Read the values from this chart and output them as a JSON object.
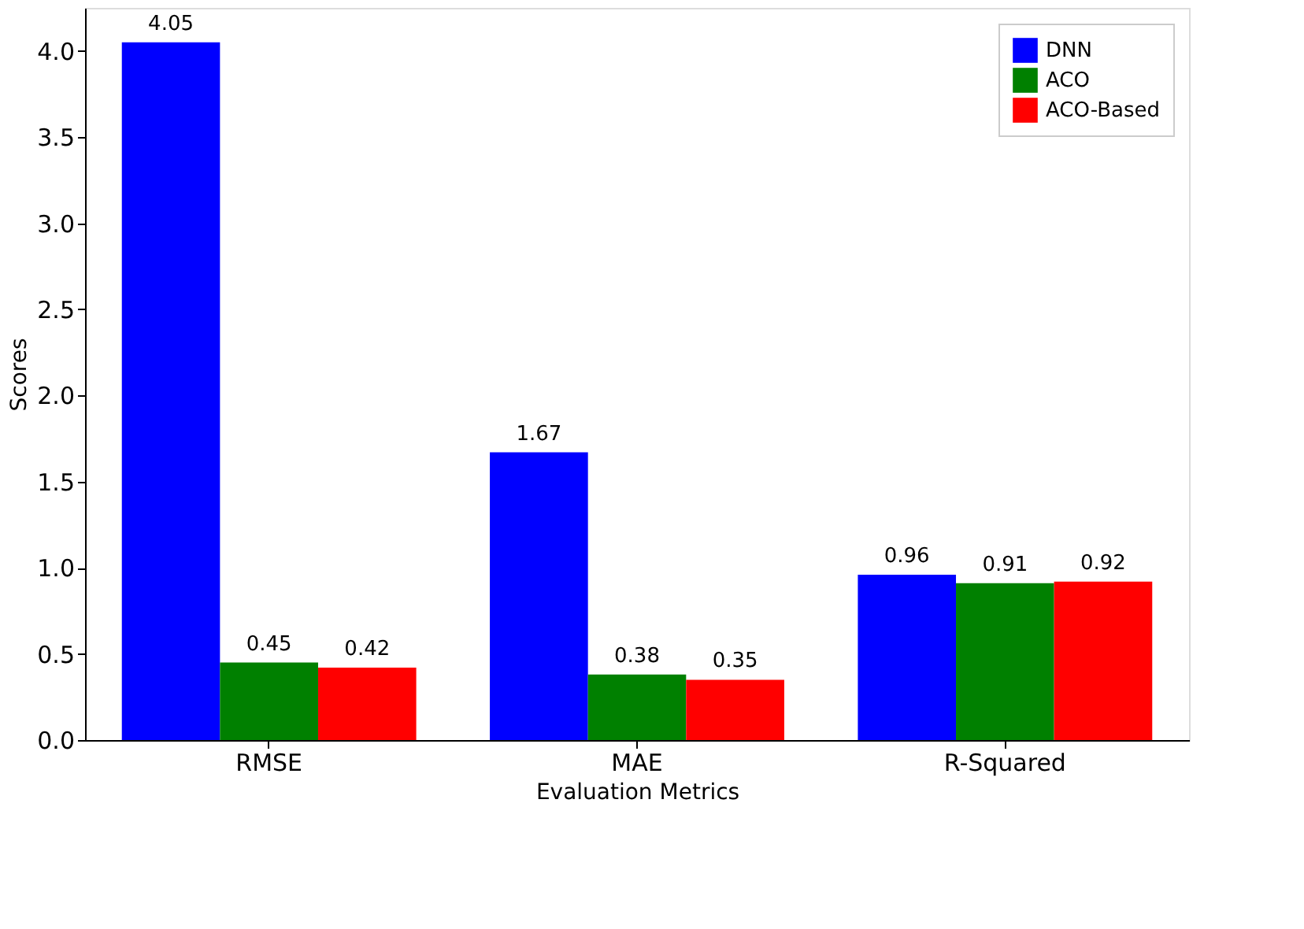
{
  "chart_data": {
    "type": "bar",
    "xlabel": "Evaluation Metrics",
    "ylabel": "Scores",
    "categories": [
      "RMSE",
      "MAE",
      "R-Squared"
    ],
    "series": [
      {
        "name": "DNN",
        "color": "#0000ff",
        "values": [
          4.05,
          1.67,
          0.96
        ]
      },
      {
        "name": "ACO",
        "color": "#008000",
        "values": [
          0.45,
          0.38,
          0.91
        ]
      },
      {
        "name": "ACO-Based",
        "color": "#ff0000",
        "values": [
          0.42,
          0.35,
          0.92
        ]
      }
    ],
    "ylim": [
      0,
      4.25
    ],
    "yticks": [
      {
        "value": 0,
        "label": "0.0"
      },
      {
        "value": 0.5,
        "label": "0.5"
      },
      {
        "value": 1,
        "label": "1.0"
      },
      {
        "value": 1.5,
        "label": "1.5"
      },
      {
        "value": 2,
        "label": "2.0"
      },
      {
        "value": 2.5,
        "label": "2.5"
      },
      {
        "value": 3,
        "label": "3.0"
      },
      {
        "value": 3.5,
        "label": "3.5"
      },
      {
        "value": 4,
        "label": "4.0"
      }
    ],
    "data_labels": true,
    "legend": "top right",
    "grid": false
  }
}
